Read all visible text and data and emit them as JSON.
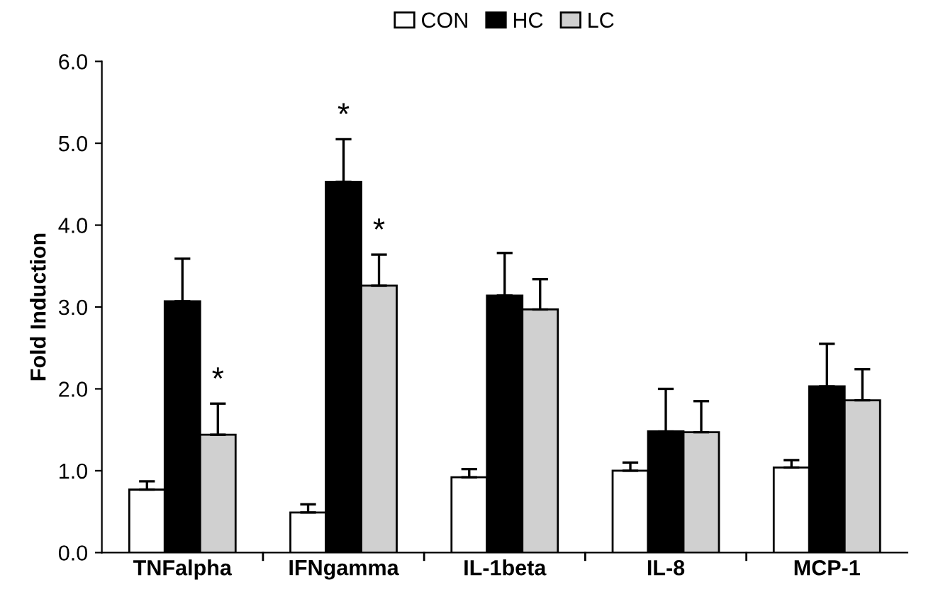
{
  "chart_data": {
    "type": "bar",
    "ylabel": "Fold Induction",
    "categories": [
      "TNFalpha",
      "IFNgamma",
      "IL-1beta",
      "IL-8",
      "MCP-1"
    ],
    "series": [
      {
        "name": "CON",
        "color": "#ffffff",
        "values": [
          0.77,
          0.49,
          0.92,
          1.0,
          1.04
        ],
        "errors": [
          [
            0.77,
            0.87
          ],
          [
            0.49,
            0.59
          ],
          [
            0.92,
            1.02
          ],
          [
            1.0,
            1.1
          ],
          [
            1.04,
            1.13
          ]
        ]
      },
      {
        "name": "HC",
        "color": "#000000",
        "values": [
          3.07,
          4.53,
          3.14,
          1.48,
          2.03
        ],
        "value_labels": [
          null,
          "*",
          null,
          null,
          null
        ],
        "errors": [
          [
            3.07,
            3.59
          ],
          [
            4.53,
            5.05
          ],
          [
            3.14,
            3.66
          ],
          [
            1.48,
            2.0
          ],
          [
            2.03,
            2.55
          ]
        ]
      },
      {
        "name": "LC",
        "color": "#d0d0d0",
        "values": [
          1.44,
          3.26,
          2.97,
          1.47,
          1.86
        ],
        "value_labels": [
          "*",
          "*",
          null,
          null,
          null
        ],
        "errors": [
          [
            1.44,
            1.82
          ],
          [
            3.26,
            3.64
          ],
          [
            2.97,
            3.34
          ],
          [
            1.47,
            1.85
          ],
          [
            1.86,
            2.24
          ]
        ]
      }
    ],
    "ylim": [
      0,
      6
    ],
    "yticks": [
      {
        "value": 0,
        "label": "0.0"
      },
      {
        "value": 1,
        "label": "1.0"
      },
      {
        "value": 2,
        "label": "2.0"
      },
      {
        "value": 3,
        "label": "3.0"
      },
      {
        "value": 4,
        "label": "4.0"
      },
      {
        "value": 5,
        "label": "5.0"
      },
      {
        "value": 6,
        "label": "6.0"
      }
    ],
    "grid": false,
    "legend": "top"
  }
}
